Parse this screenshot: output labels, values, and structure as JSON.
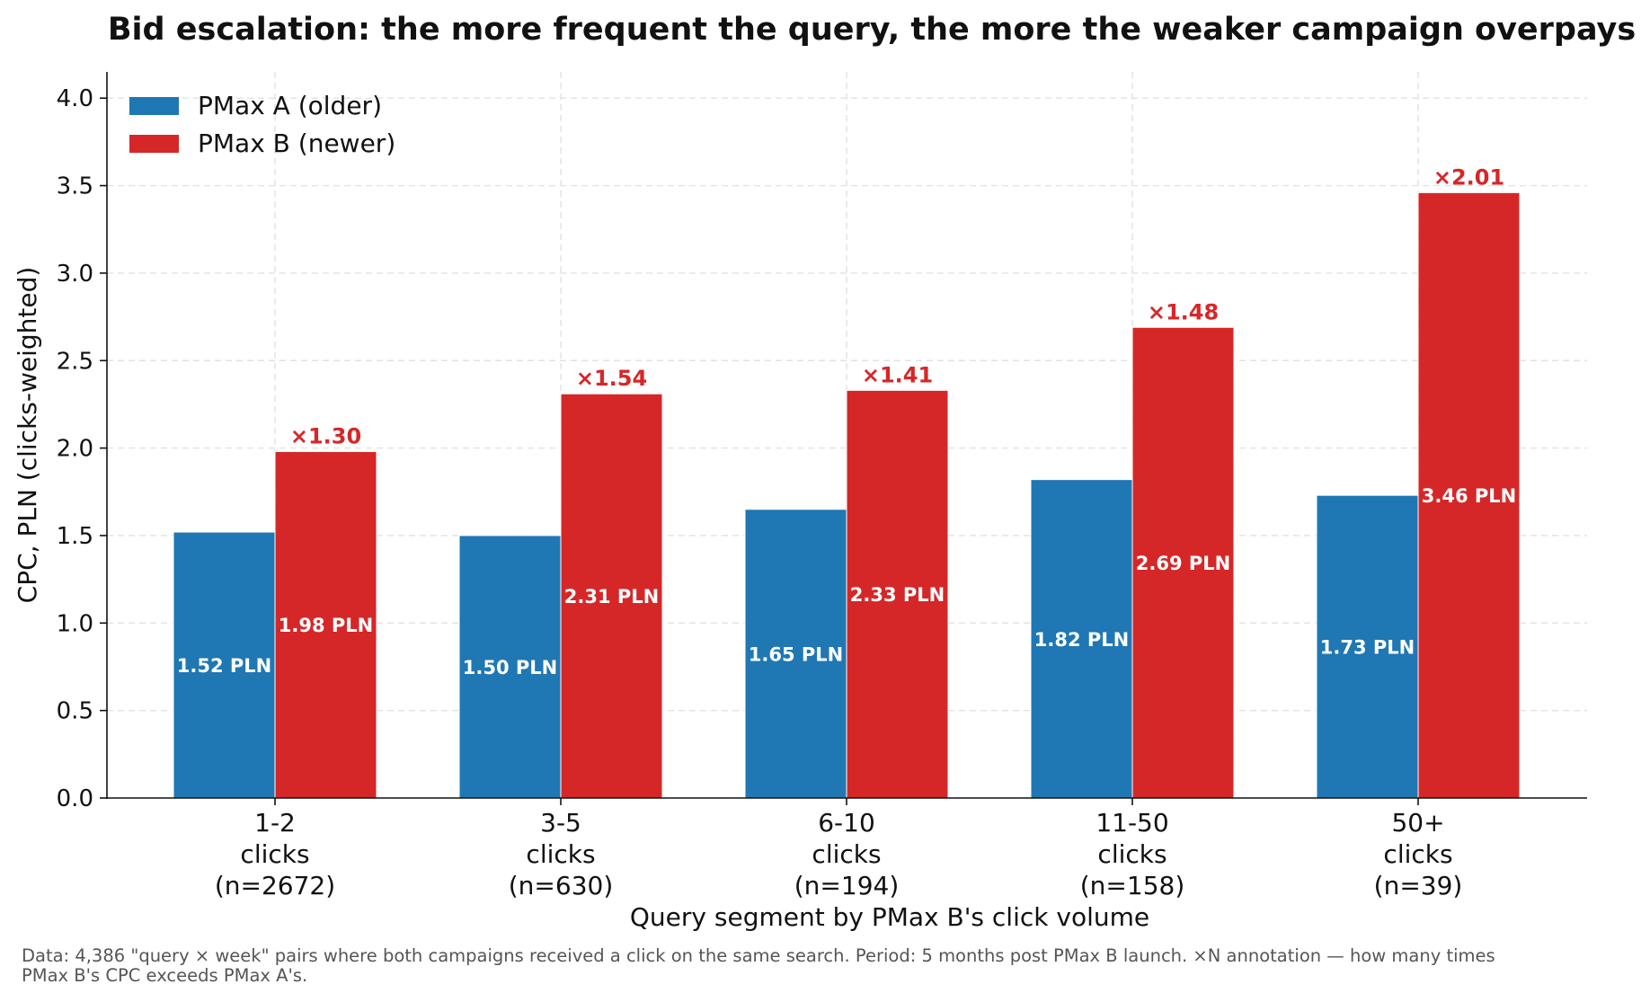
{
  "chart_data": {
    "type": "bar",
    "title": "Bid escalation: the more frequent the query, the more the weaker campaign overpays",
    "xlabel": "Query segment by PMax B's click volume",
    "ylabel": "CPC, PLN (clicks-weighted)",
    "ylim": [
      0,
      4.15
    ],
    "yticks": [
      "0.0",
      "0.5",
      "1.0",
      "1.5",
      "2.0",
      "2.5",
      "3.0",
      "3.5",
      "4.0"
    ],
    "grid": true,
    "legend_position": "top-left",
    "categories": [
      [
        "1-2",
        "clicks",
        "(n=2672)"
      ],
      [
        "3-5",
        "clicks",
        "(n=630)"
      ],
      [
        "6-10",
        "clicks",
        "(n=194)"
      ],
      [
        "11-50",
        "clicks",
        "(n=158)"
      ],
      [
        "50+",
        "clicks",
        "(n=39)"
      ]
    ],
    "series": [
      {
        "name": "PMax A (older)",
        "color": "#1f77b4",
        "values": [
          1.52,
          1.5,
          1.65,
          1.82,
          1.73
        ],
        "labels": [
          "1.52 PLN",
          "1.50 PLN",
          "1.65 PLN",
          "1.82 PLN",
          "1.73 PLN"
        ]
      },
      {
        "name": "PMax B (newer)",
        "color": "#d62728",
        "values": [
          1.98,
          2.31,
          2.33,
          2.69,
          3.46
        ],
        "labels": [
          "1.98 PLN",
          "2.31 PLN",
          "2.33 PLN",
          "2.69 PLN",
          "3.46 PLN"
        ]
      }
    ],
    "ratio_annotations": [
      "×1.30",
      "×1.54",
      "×1.41",
      "×1.48",
      "×2.01"
    ],
    "ratio_color": "#d62728"
  },
  "footnote": {
    "line1": "Data: 4,386 \"query × week\" pairs where both campaigns received a click on the same search.  Period: 5 months post PMax B launch.  ×N annotation — how many times",
    "line2": "PMax B's CPC exceeds PMax A's."
  }
}
